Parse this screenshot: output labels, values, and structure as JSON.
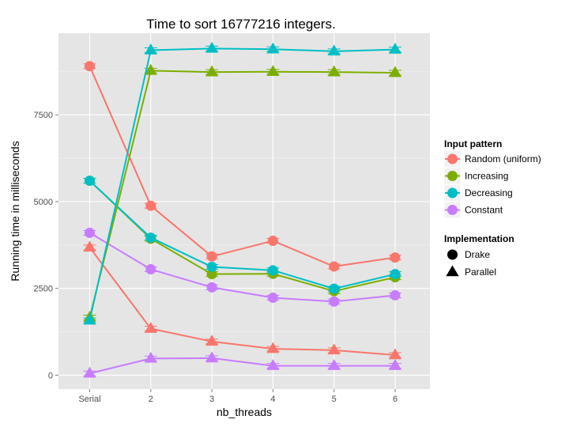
{
  "chart_data": {
    "type": "line",
    "title": "Time to sort 16777216 integers.",
    "xlabel": "nb_threads",
    "ylabel": "Running time in milliseconds",
    "categories": [
      "Serial",
      "2",
      "3",
      "4",
      "5",
      "6"
    ],
    "ylim": [
      -400,
      9850
    ],
    "yticks": [
      0,
      2500,
      5000,
      7500
    ],
    "yticklabels": [
      "0",
      "2500",
      "5000",
      "7500"
    ],
    "grid": true,
    "legend_position": "right",
    "legend": {
      "color_title": "Input pattern",
      "shape_title": "Implementation",
      "colors": [
        {
          "name": "Random (uniform)",
          "color": "#F8766D"
        },
        {
          "name": "Increasing",
          "color": "#7CAE00"
        },
        {
          "name": "Decreasing",
          "color": "#00BFC4"
        },
        {
          "name": "Constant",
          "color": "#C77CFF"
        }
      ],
      "shapes": [
        {
          "name": "Drake",
          "shape": "circle"
        },
        {
          "name": "Parallel",
          "shape": "triangle"
        }
      ]
    },
    "series": [
      {
        "pattern": "Random (uniform)",
        "implementation": "Drake",
        "color": "#F8766D",
        "shape": "circle",
        "values": [
          8900,
          4880,
          3420,
          3870,
          3130,
          3390
        ]
      },
      {
        "pattern": "Increasing",
        "implementation": "Drake",
        "color": "#7CAE00",
        "shape": "circle",
        "values": [
          5600,
          3930,
          2910,
          2920,
          2420,
          2820
        ]
      },
      {
        "pattern": "Decreasing",
        "implementation": "Drake",
        "color": "#00BFC4",
        "shape": "circle",
        "values": [
          5600,
          3960,
          3120,
          3020,
          2490,
          2910
        ]
      },
      {
        "pattern": "Constant",
        "implementation": "Drake",
        "color": "#C77CFF",
        "shape": "circle",
        "values": [
          4100,
          3050,
          2530,
          2230,
          2120,
          2300
        ]
      },
      {
        "pattern": "Random (uniform)",
        "implementation": "Parallel",
        "color": "#F8766D",
        "shape": "triangle",
        "values": [
          3680,
          1340,
          970,
          760,
          720,
          580
        ]
      },
      {
        "pattern": "Increasing",
        "implementation": "Parallel",
        "color": "#7CAE00",
        "shape": "triangle",
        "values": [
          1660,
          8770,
          8730,
          8740,
          8730,
          8710
        ]
      },
      {
        "pattern": "Decreasing",
        "implementation": "Parallel",
        "color": "#00BFC4",
        "shape": "triangle",
        "values": [
          1580,
          9360,
          9410,
          9390,
          9330,
          9380
        ]
      },
      {
        "pattern": "Constant",
        "implementation": "Parallel",
        "color": "#C77CFF",
        "shape": "triangle",
        "values": [
          50,
          480,
          490,
          270,
          270,
          270
        ]
      }
    ]
  }
}
